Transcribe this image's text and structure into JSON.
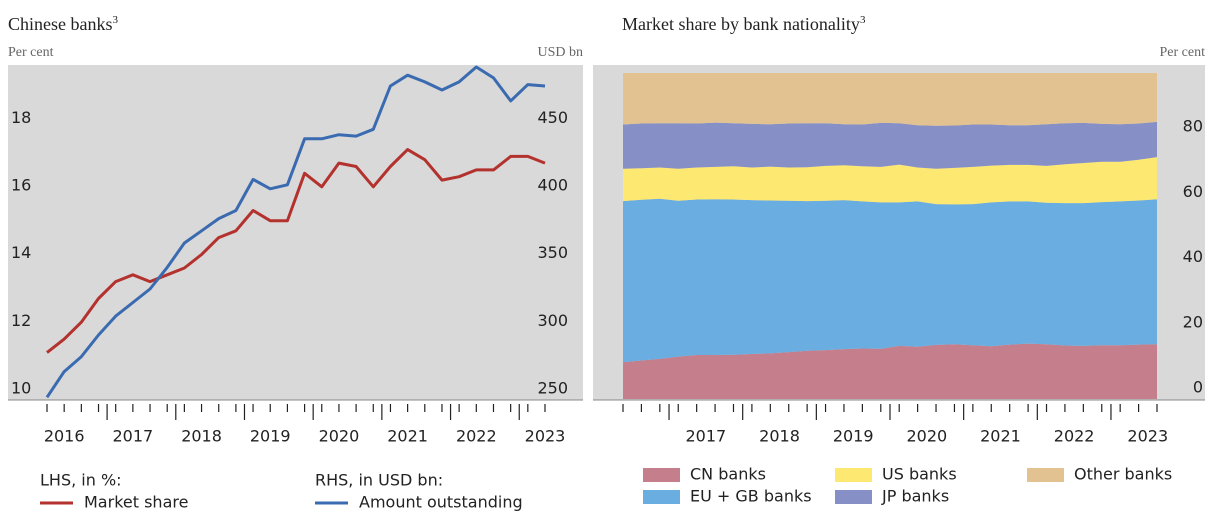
{
  "chart_data": [
    {
      "type": "line",
      "title": "Chinese banks",
      "title_superscript": "3",
      "y_label": "Per cent",
      "y2_label": "USD bn",
      "categories": [
        null,
        "2016",
        null,
        null,
        null,
        "2017",
        null,
        null,
        null,
        "2018",
        null,
        null,
        null,
        "2019",
        null,
        null,
        null,
        "2020",
        null,
        null,
        null,
        "2021",
        null,
        null,
        null,
        "2022",
        null,
        null,
        null,
        "2023"
      ],
      "ylim": [
        10,
        19.9
      ],
      "yticks": [
        10,
        12,
        14,
        16,
        18
      ],
      "y2lim": [
        250,
        497.5
      ],
      "y2ticks": [
        250,
        300,
        350,
        400,
        450
      ],
      "series": [
        {
          "name": "Market share",
          "legend_heading": "LHS, in %:",
          "axis": "y",
          "color": "#b3322e",
          "values": [
            11.4,
            11.8,
            12.3,
            13.0,
            13.5,
            13.7,
            13.5,
            13.7,
            13.9,
            14.3,
            14.8,
            15.0,
            15.6,
            15.3,
            15.3,
            16.7,
            16.3,
            17.0,
            16.9,
            16.3,
            16.9,
            17.4,
            17.1,
            16.5,
            16.6,
            16.8,
            16.8,
            17.2,
            17.2,
            17.0
          ]
        },
        {
          "name": "Amount outstanding",
          "legend_heading": "RHS, in USD bn:",
          "axis": "y2",
          "color": "#3a6bb0",
          "values": [
            252,
            271,
            282,
            298,
            312,
            322,
            332,
            348,
            366,
            375,
            384,
            390,
            413,
            406,
            409,
            443,
            443,
            446,
            445,
            450,
            482,
            490,
            485,
            479,
            485,
            496,
            488,
            471,
            483,
            482
          ]
        }
      ]
    },
    {
      "type": "stacked_area",
      "title": "Market share by bank nationality",
      "title_superscript": "3",
      "y_label": "Per cent",
      "categories": [
        null,
        null,
        null,
        null,
        "2017",
        null,
        null,
        null,
        "2018",
        null,
        null,
        null,
        "2019",
        null,
        null,
        null,
        "2020",
        null,
        null,
        null,
        "2021",
        null,
        null,
        null,
        "2022",
        null,
        null,
        null,
        "2023",
        null
      ],
      "ylim": [
        0,
        100
      ],
      "yticks": [
        0,
        20,
        40,
        60,
        80
      ],
      "series": [
        {
          "name": "CN banks",
          "color": "#c47e8c",
          "values": [
            11.3,
            11.8,
            12.3,
            13.0,
            13.5,
            13.5,
            13.6,
            13.8,
            14.0,
            14.4,
            14.8,
            15.0,
            15.3,
            15.5,
            15.4,
            16.3,
            16.0,
            16.6,
            16.8,
            16.5,
            16.2,
            16.7,
            17.0,
            16.8,
            16.4,
            16.3,
            16.5,
            16.5,
            16.7,
            16.8
          ]
        },
        {
          "name": "EU + GB banks",
          "color": "#6aade0",
          "values": [
            49.4,
            49.3,
            49.1,
            47.8,
            47.7,
            47.8,
            47.6,
            47.2,
            46.9,
            46.4,
            45.9,
            45.8,
            45.7,
            45.1,
            44.9,
            44.0,
            44.6,
            43.2,
            42.9,
            43.3,
            44.1,
            43.9,
            43.6,
            43.4,
            43.7,
            43.8,
            43.9,
            44.1,
            44.2,
            44.5
          ]
        },
        {
          "name": "US banks",
          "color": "#fde872",
          "values": [
            9.9,
            9.7,
            9.6,
            9.8,
            9.8,
            9.9,
            10.2,
            10.0,
            10.4,
            10.2,
            10.4,
            10.7,
            10.7,
            10.8,
            10.9,
            11.6,
            10.4,
            10.8,
            11.2,
            11.4,
            11.3,
            11.2,
            11.2,
            11.3,
            11.9,
            12.3,
            12.4,
            12.2,
            12.5,
            12.9
          ]
        },
        {
          "name": "JP banks",
          "color": "#8790c6",
          "values": [
            13.6,
            13.7,
            13.6,
            14.0,
            13.5,
            13.6,
            13.2,
            13.4,
            13.0,
            13.5,
            13.5,
            13.1,
            12.6,
            12.8,
            13.5,
            12.7,
            13.0,
            13.2,
            13.0,
            13.0,
            12.6,
            12.2,
            12.2,
            12.8,
            12.6,
            12.3,
            11.6,
            11.5,
            11.1,
            10.8
          ]
        },
        {
          "name": "Other banks",
          "color": "#e2c290",
          "values": [
            15.8,
            15.5,
            15.4,
            15.4,
            15.5,
            15.2,
            15.4,
            15.6,
            15.7,
            15.5,
            15.4,
            15.4,
            15.7,
            15.8,
            15.3,
            15.4,
            16.0,
            16.2,
            16.1,
            15.8,
            15.8,
            16.0,
            16.0,
            15.7,
            15.4,
            15.3,
            15.6,
            15.7,
            15.5,
            15.0
          ]
        }
      ]
    }
  ]
}
